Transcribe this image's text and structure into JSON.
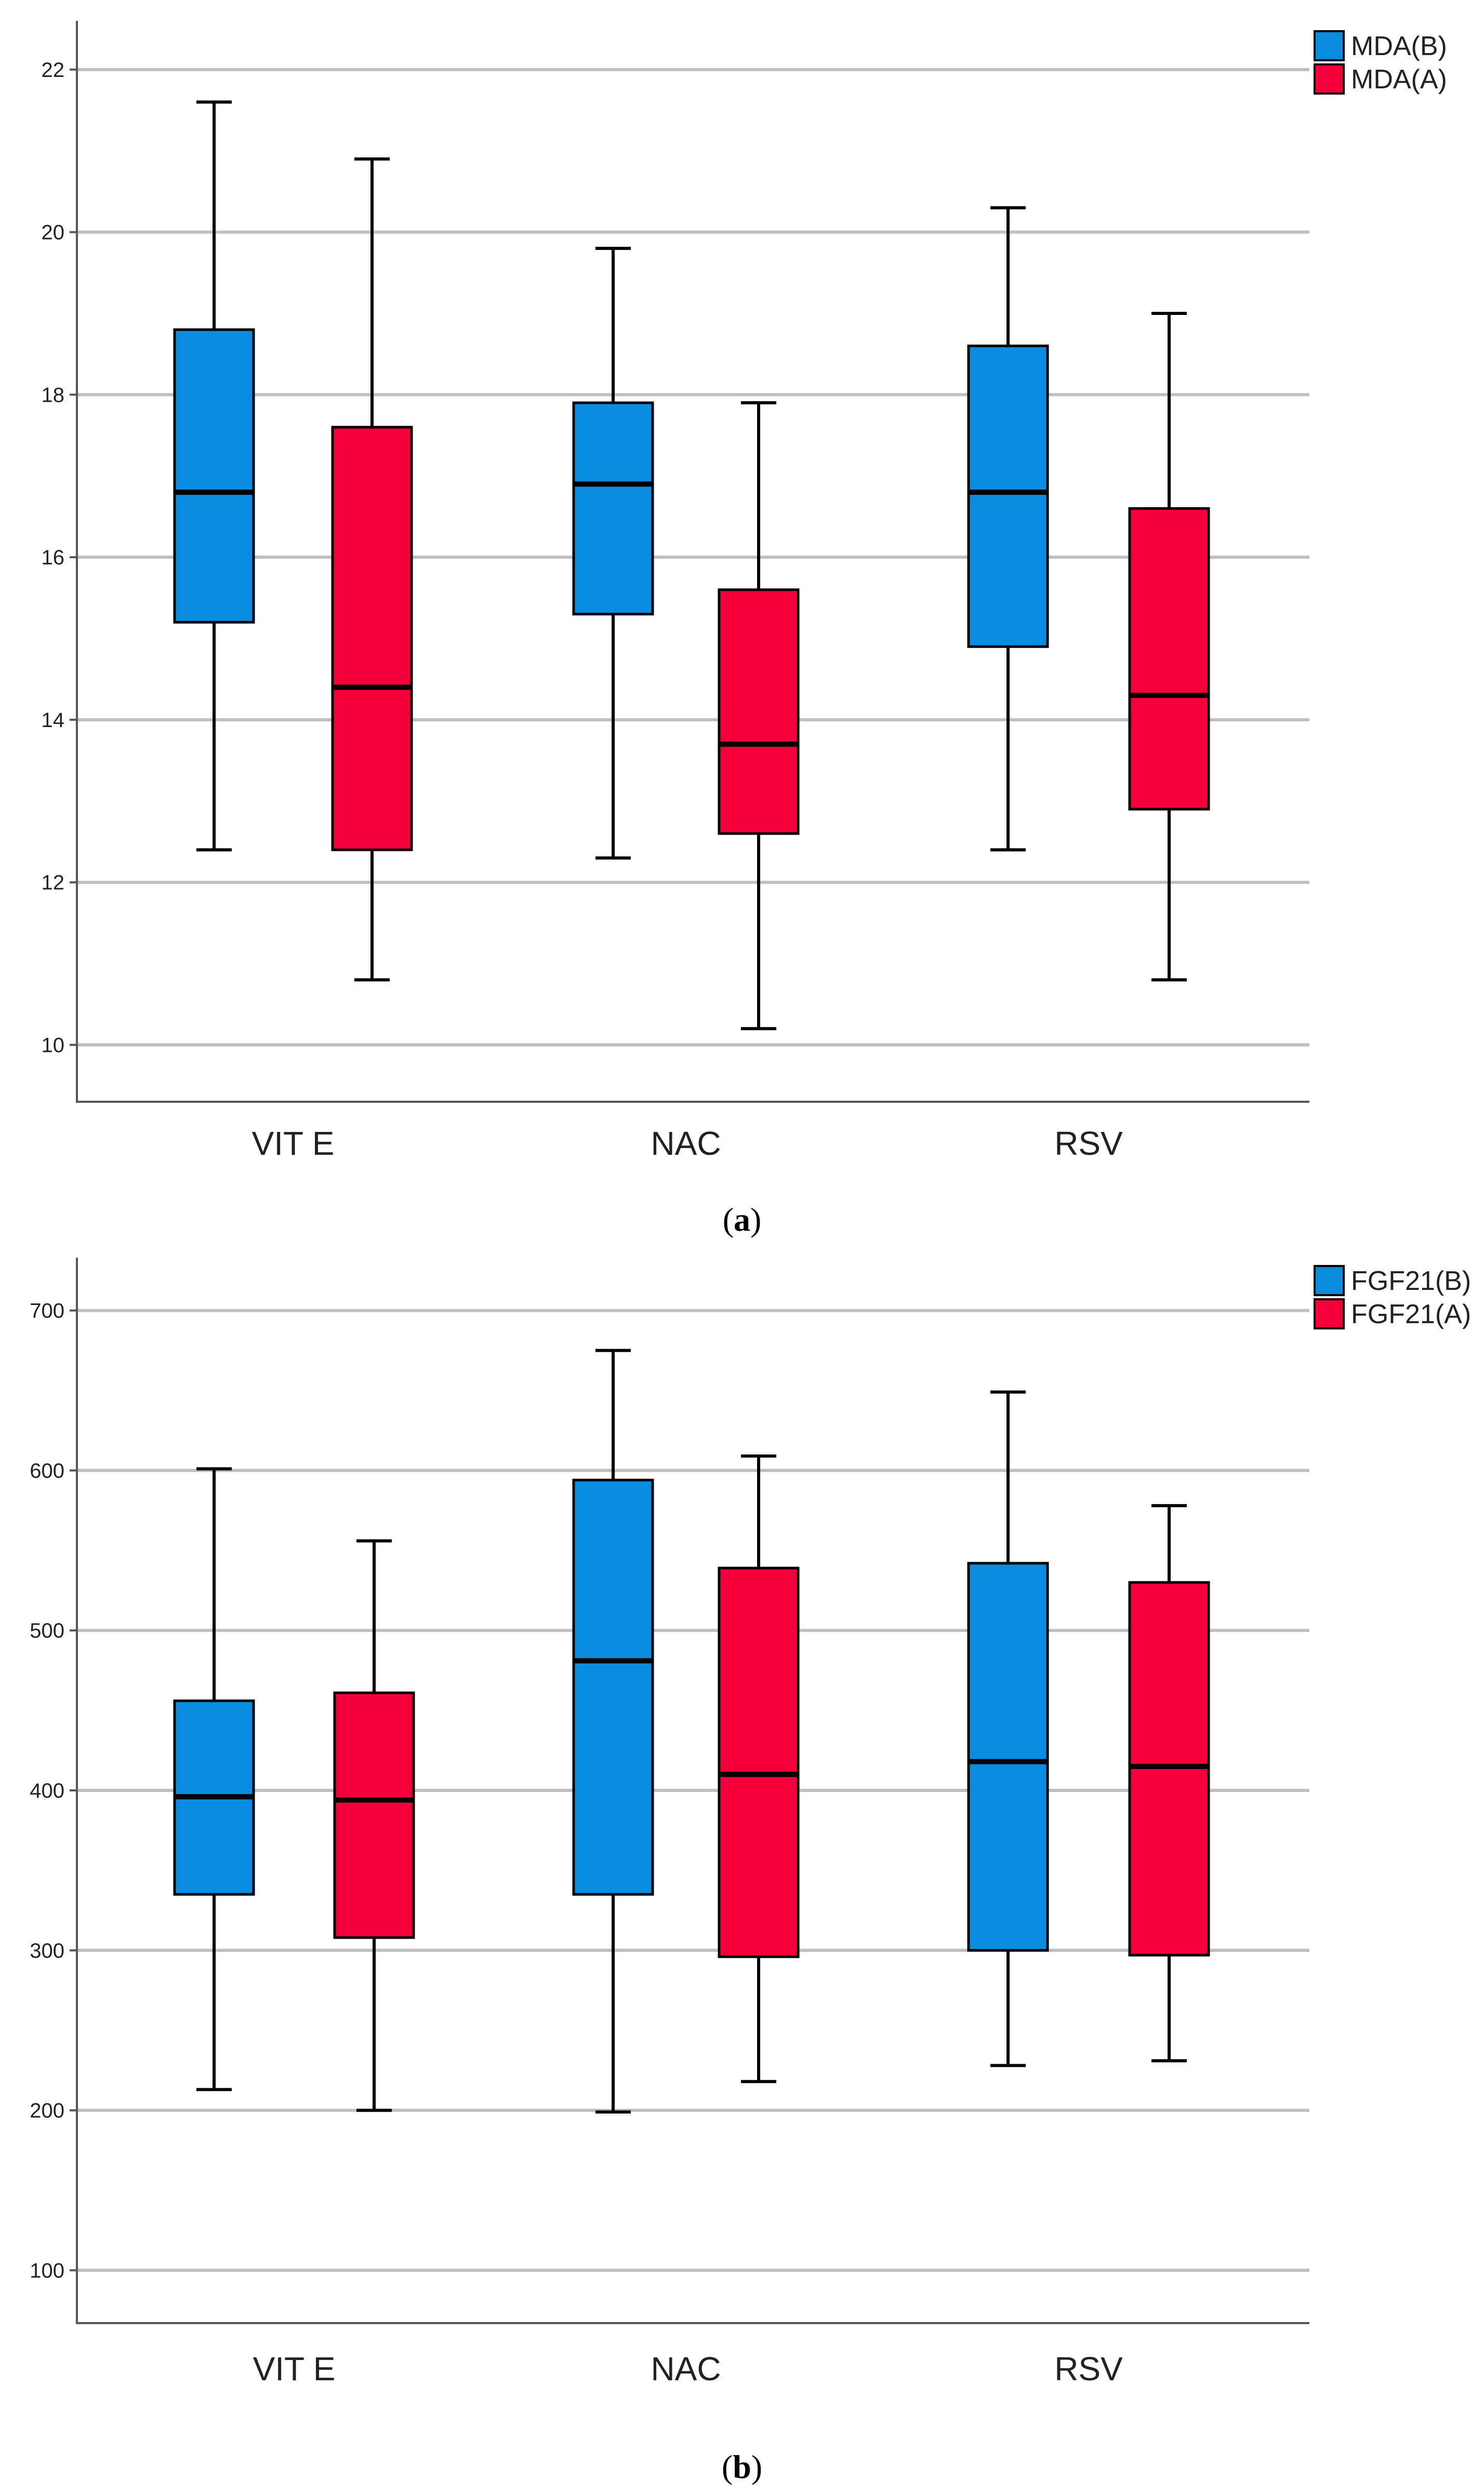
{
  "chart_data": [
    {
      "id": "a",
      "type": "box",
      "caption_label": "a",
      "ylim": [
        9.3,
        22.6
      ],
      "yticks": [
        10,
        12,
        14,
        16,
        18,
        20,
        22
      ],
      "grid": true,
      "legend_position": "top-right",
      "categories": [
        "VIT E",
        "NAC",
        "RSV"
      ],
      "series": [
        {
          "name": "MDA(B)",
          "color": "#0a8de0",
          "boxes": [
            {
              "min": 12.4,
              "q1": 15.2,
              "median": 16.8,
              "q3": 18.8,
              "max": 21.6
            },
            {
              "min": 12.3,
              "q1": 15.3,
              "median": 16.9,
              "q3": 17.9,
              "max": 19.8
            },
            {
              "min": 12.4,
              "q1": 14.9,
              "median": 16.8,
              "q3": 18.6,
              "max": 20.3
            }
          ]
        },
        {
          "name": "MDA(A)",
          "color": "#f5003a",
          "boxes": [
            {
              "min": 10.8,
              "q1": 12.4,
              "median": 14.4,
              "q3": 17.6,
              "max": 20.9
            },
            {
              "min": 10.2,
              "q1": 12.6,
              "median": 13.7,
              "q3": 15.6,
              "max": 17.9
            },
            {
              "min": 10.8,
              "q1": 12.9,
              "median": 14.3,
              "q3": 16.6,
              "max": 19.0
            }
          ]
        }
      ]
    },
    {
      "id": "b",
      "type": "box",
      "caption_label": "b",
      "ylim": [
        67,
        733
      ],
      "yticks": [
        100,
        200,
        300,
        400,
        500,
        600,
        700
      ],
      "grid": true,
      "legend_position": "top-right",
      "categories": [
        "VIT E",
        "NAC",
        "RSV"
      ],
      "series": [
        {
          "name": "FGF21(B)",
          "color": "#0a8de0",
          "boxes": [
            {
              "min": 213,
              "q1": 335,
              "median": 396,
              "q3": 456,
              "max": 601
            },
            {
              "min": 199,
              "q1": 335,
              "median": 481,
              "q3": 594,
              "max": 675
            },
            {
              "min": 228,
              "q1": 300,
              "median": 418,
              "q3": 542,
              "max": 649
            }
          ]
        },
        {
          "name": "FGF21(A)",
          "color": "#f5003a",
          "boxes": [
            {
              "min": 200,
              "q1": 308,
              "median": 394,
              "q3": 461,
              "max": 556
            },
            {
              "min": 218,
              "q1": 296,
              "median": 410,
              "q3": 539,
              "max": 609
            },
            {
              "min": 231,
              "q1": 297,
              "median": 415,
              "q3": 530,
              "max": 578
            }
          ]
        }
      ]
    }
  ]
}
